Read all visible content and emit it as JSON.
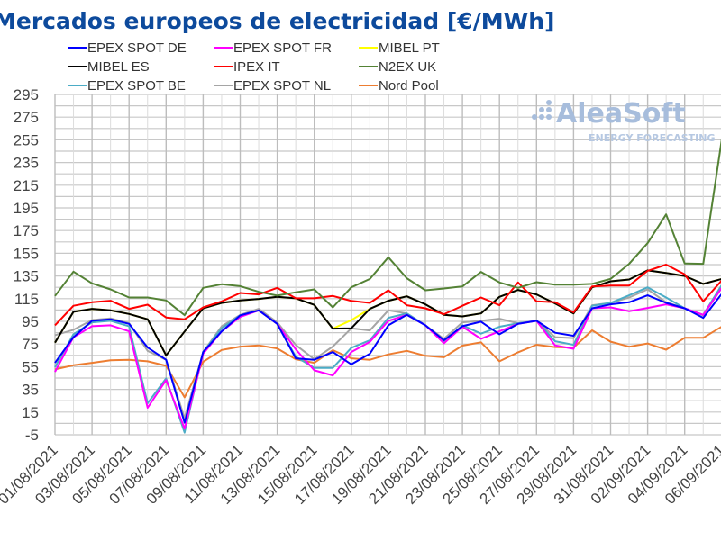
{
  "chart_data": {
    "type": "line",
    "title": "Mercados europeos de electricidad [€/MWh]",
    "xlabel": "",
    "ylabel": "",
    "ylim": [
      -5,
      295
    ],
    "yticks": [
      -5,
      15,
      35,
      55,
      75,
      95,
      115,
      135,
      155,
      175,
      195,
      215,
      235,
      255,
      275,
      295
    ],
    "grid": true,
    "legend": "top",
    "x": [
      "01/08/2021",
      "02/08/2021",
      "03/08/2021",
      "04/08/2021",
      "05/08/2021",
      "06/08/2021",
      "07/08/2021",
      "08/08/2021",
      "09/08/2021",
      "10/08/2021",
      "11/08/2021",
      "12/08/2021",
      "13/08/2021",
      "14/08/2021",
      "15/08/2021",
      "16/08/2021",
      "17/08/2021",
      "18/08/2021",
      "19/08/2021",
      "20/08/2021",
      "21/08/2021",
      "22/08/2021",
      "23/08/2021",
      "24/08/2021",
      "25/08/2021",
      "26/08/2021",
      "27/08/2021",
      "28/08/2021",
      "29/08/2021",
      "30/08/2021",
      "31/08/2021",
      "01/09/2021",
      "02/09/2021",
      "03/09/2021",
      "04/09/2021",
      "05/09/2021",
      "06/09/2021"
    ],
    "xtick_labels": [
      "01/08/2021",
      "03/08/2021",
      "05/08/2021",
      "07/08/2021",
      "09/08/2021",
      "11/08/2021",
      "13/08/2021",
      "15/08/2021",
      "17/08/2021",
      "19/08/2021",
      "21/08/2021",
      "23/08/2021",
      "25/08/2021",
      "27/08/2021",
      "29/08/2021",
      "31/08/2021",
      "02/09/2021",
      "04/09/2021",
      "06/09/2021"
    ],
    "series": [
      {
        "name": "MIBEL PT",
        "color": "#ffff00",
        "values": [
          76.2,
          103.4,
          106,
          104.7,
          101.5,
          96.8,
          65,
          86,
          106.5,
          111.3,
          113.4,
          114.8,
          116.6,
          115.3,
          109.5,
          88.6,
          96,
          106,
          113.2,
          117.1,
          110,
          100.7,
          99.4,
          102,
          116.6,
          122.7,
          118.7,
          110.8,
          102,
          125,
          130.3,
          131.9,
          139.9,
          137.7,
          135,
          128,
          132.4
        ]
      },
      {
        "name": "Nord Pool",
        "color": "#ed7d31",
        "values": [
          52.6,
          56.3,
          58.4,
          60.6,
          61.1,
          59.8,
          55.8,
          28,
          59.3,
          69.8,
          72.7,
          73.8,
          71.1,
          61.6,
          58.4,
          69.5,
          62.4,
          61.1,
          65.9,
          69,
          64.6,
          63.3,
          73.6,
          76.5,
          59.8,
          67.7,
          74.4,
          72.3,
          71.8,
          87.1,
          77.1,
          72.6,
          75.5,
          70,
          80.5,
          80.5,
          90.3
        ]
      },
      {
        "name": "EPEX SPOT NL",
        "color": "#a5a5a5",
        "values": [
          82.8,
          87.5,
          96.2,
          97.6,
          93.3,
          69,
          61.1,
          9.5,
          67.9,
          90.7,
          100.7,
          106,
          94.1,
          74.1,
          61.6,
          72.8,
          88.8,
          87,
          104.7,
          102,
          91.5,
          79.6,
          94.1,
          95.5,
          97.3,
          93.3,
          95.5,
          81,
          80.2,
          109.2,
          111.3,
          116,
          123.2,
          111.8,
          106.5,
          100.2,
          124.5
        ]
      },
      {
        "name": "EPEX SPOT BE",
        "color": "#4bacc6",
        "values": [
          54.5,
          83.6,
          94.1,
          95.5,
          90.7,
          22.8,
          44.7,
          -3,
          67.9,
          89,
          100.2,
          104.7,
          92.8,
          63.7,
          54,
          54,
          71.7,
          78.3,
          98.1,
          102,
          91.5,
          76.9,
          91.5,
          84.1,
          90.2,
          93.3,
          95.5,
          77.5,
          74.3,
          108.7,
          111.3,
          117.9,
          125,
          116,
          106.5,
          100.7,
          127.1
        ]
      },
      {
        "name": "EPEX SPOT FR",
        "color": "#ff00ff",
        "values": [
          50.5,
          81,
          90.7,
          91.5,
          86.2,
          18.8,
          43.2,
          0.3,
          66.4,
          86.2,
          98.9,
          104.7,
          92.8,
          70.3,
          51.8,
          47.3,
          67.9,
          76.9,
          95.5,
          100.7,
          91.5,
          75.6,
          90.2,
          79.6,
          86.2,
          92.8,
          95.5,
          73.8,
          70.8,
          106.5,
          107.3,
          103.9,
          106.8,
          110,
          106.5,
          100.7,
          124.5
        ]
      },
      {
        "name": "EPEX SPOT DE",
        "color": "#0000ff",
        "values": [
          58.4,
          81,
          95.5,
          96.8,
          92.8,
          71.9,
          61.1,
          5.6,
          67.9,
          86.2,
          100.2,
          104.7,
          92.8,
          62.4,
          61.1,
          67.9,
          57.1,
          66.4,
          91.5,
          100.7,
          91.5,
          78.3,
          90.7,
          94.7,
          83.6,
          92.8,
          95.5,
          84.9,
          82.2,
          106.5,
          110,
          111.8,
          117.9,
          111.3,
          106.5,
          98.1,
          119.2
        ]
      },
      {
        "name": "MIBEL ES",
        "color": "#000000",
        "values": [
          76.2,
          103.4,
          106,
          104.7,
          101.5,
          96.8,
          65,
          86,
          106.5,
          111.3,
          113.4,
          114.8,
          116.6,
          115.3,
          109.5,
          88.6,
          88.9,
          106,
          113.2,
          117.1,
          110,
          100.7,
          99.4,
          102,
          116.6,
          122.7,
          118.7,
          110.8,
          102,
          125,
          130.3,
          131.9,
          139.9,
          137.7,
          135,
          128,
          132.4
        ]
      },
      {
        "name": "IPEX IT",
        "color": "#ff0000",
        "values": [
          91.5,
          108.7,
          111.8,
          113.2,
          106,
          109.7,
          98.4,
          96.8,
          107.3,
          112.6,
          120,
          118.7,
          124.5,
          115.3,
          115.3,
          117.4,
          113,
          111.3,
          122.4,
          109.2,
          106.5,
          101.3,
          108.7,
          116,
          109.2,
          129.3,
          112.6,
          111.8,
          102.9,
          125.8,
          126.6,
          126.6,
          139.5,
          145,
          136.4,
          112.6,
          131
        ]
      },
      {
        "name": "N2EX UK",
        "color": "#548235",
        "values": [
          117.4,
          138.8,
          128.5,
          123.2,
          116,
          116,
          113.4,
          100.5,
          124.5,
          127.7,
          126,
          121,
          117.7,
          120.6,
          123.2,
          107.3,
          125,
          132.4,
          151.5,
          133,
          122.4,
          124,
          125.8,
          138.6,
          129.3,
          124.5,
          129.5,
          127.4,
          127.4,
          128,
          132.4,
          145.7,
          164,
          189.3,
          146,
          145.7,
          255
        ]
      }
    ],
    "legend_order": [
      "EPEX SPOT DE",
      "EPEX SPOT FR",
      "MIBEL PT",
      "MIBEL ES",
      "IPEX IT",
      "N2EX UK",
      "EPEX SPOT BE",
      "EPEX SPOT NL",
      "Nord Pool"
    ]
  },
  "watermark": {
    "brand": "AleaSoft",
    "tagline": "ENERGY FORECASTING"
  }
}
